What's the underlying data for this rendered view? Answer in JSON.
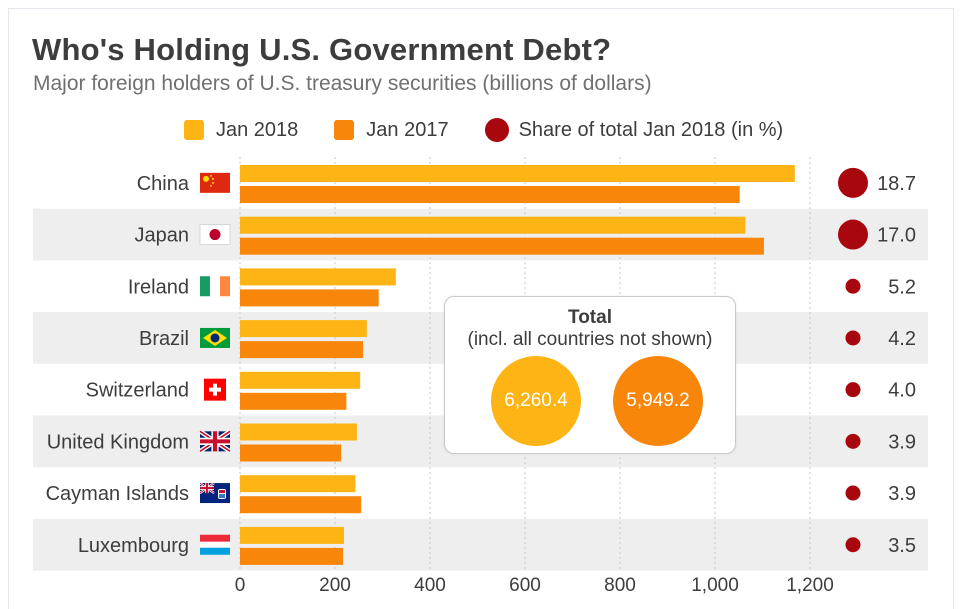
{
  "title": "Who's Holding U.S. Government Debt?",
  "subtitle": "Major foreign holders of U.S. treasury securities (billions of dollars)",
  "legend": {
    "jan2018": "Jan 2018",
    "jan2017": "Jan 2017",
    "share": "Share of total Jan 2018 (in %)"
  },
  "colors": {
    "jan2018": "#fdb414",
    "jan2017": "#f8860b",
    "share": "#a8070e",
    "band": "#eeeeee",
    "text": "#3d3d3d"
  },
  "total": {
    "title": "Total",
    "subtitle": "(incl. all countries not shown)",
    "jan2018": "6,260.4",
    "jan2017": "5,949.2"
  },
  "chart_data": {
    "type": "bar",
    "orientation": "horizontal",
    "title": "Who's Holding U.S. Government Debt?",
    "subtitle": "Major foreign holders of U.S. treasury securities (billions of dollars)",
    "categories": [
      "China",
      "Japan",
      "Ireland",
      "Brazil",
      "Switzerland",
      "United Kingdom",
      "Cayman Islands",
      "Luxembourg"
    ],
    "flags": [
      "china",
      "japan",
      "ireland",
      "brazil",
      "switzerland",
      "united-kingdom",
      "cayman-islands",
      "luxembourg"
    ],
    "series": [
      {
        "name": "Jan 2018",
        "values": [
          1168,
          1064,
          328,
          267,
          253,
          246,
          243,
          219
        ]
      },
      {
        "name": "Jan 2017",
        "values": [
          1052,
          1103,
          292,
          259,
          224,
          213,
          255,
          217
        ]
      }
    ],
    "share": {
      "name": "Share of total Jan 2018 (in %)",
      "values": [
        18.7,
        17.0,
        5.2,
        4.2,
        4.0,
        3.9,
        3.9,
        3.5
      ],
      "labels": [
        "18.7",
        "17.0",
        "5.2",
        "4.2",
        "4.0",
        "3.9",
        "3.9",
        "3.5"
      ]
    },
    "xlim": [
      0,
      1200
    ],
    "xticks": [
      0,
      200,
      400,
      600,
      800,
      1000,
      1200
    ],
    "xtick_labels": [
      "0",
      "200",
      "400",
      "600",
      "800",
      "1,000",
      "1,200"
    ],
    "gridlines": true,
    "legend_position": "top"
  }
}
